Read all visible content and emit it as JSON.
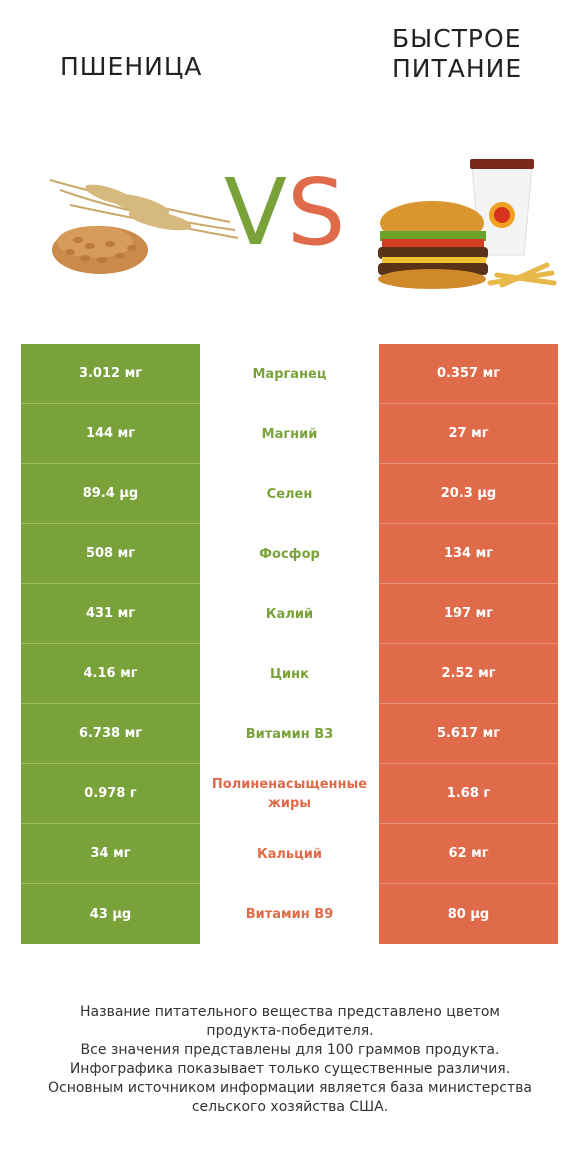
{
  "header": {
    "left_title": "ПШЕНИЦА",
    "right_title_line1": "БЫСТРОЕ",
    "right_title_line2": "ПИТАНИЕ",
    "vs_v": "V",
    "vs_s": "S"
  },
  "colors": {
    "winner_left": "#79a33a",
    "winner_right": "#e06b4a"
  },
  "icons": {
    "left": "wheat-illustration",
    "right": "fast-food-illustration"
  },
  "rows": [
    {
      "left": "3.012 мг",
      "nutrient": "Марганец",
      "right": "0.357 мг",
      "winner": "left"
    },
    {
      "left": "144 мг",
      "nutrient": "Магний",
      "right": "27 мг",
      "winner": "left"
    },
    {
      "left": "89.4 µg",
      "nutrient": "Селен",
      "right": "20.3 µg",
      "winner": "left"
    },
    {
      "left": "508 мг",
      "nutrient": "Фосфор",
      "right": "134 мг",
      "winner": "left"
    },
    {
      "left": "431 мг",
      "nutrient": "Калий",
      "right": "197 мг",
      "winner": "left"
    },
    {
      "left": "4.16 мг",
      "nutrient": "Цинк",
      "right": "2.52 мг",
      "winner": "left"
    },
    {
      "left": "6.738 мг",
      "nutrient": "Витамин B3",
      "right": "5.617 мг",
      "winner": "left"
    },
    {
      "left": "0.978 г",
      "nutrient": "Полиненасыщенные жиры",
      "right": "1.68 г",
      "winner": "right"
    },
    {
      "left": "34 мг",
      "nutrient": "Кальций",
      "right": "62 мг",
      "winner": "right"
    },
    {
      "left": "43 µg",
      "nutrient": "Витамин B9",
      "right": "80 µg",
      "winner": "right"
    }
  ],
  "footer": {
    "line1": "Название питательного вещества представлено цветом",
    "line2": "продукта-победителя.",
    "line3": "Все значения представлены для 100 граммов продукта.",
    "line4": "Инфографика показывает только существенные различия.",
    "line5": "Основным источником информации является база министерства",
    "line6": "сельского хозяйства США."
  }
}
